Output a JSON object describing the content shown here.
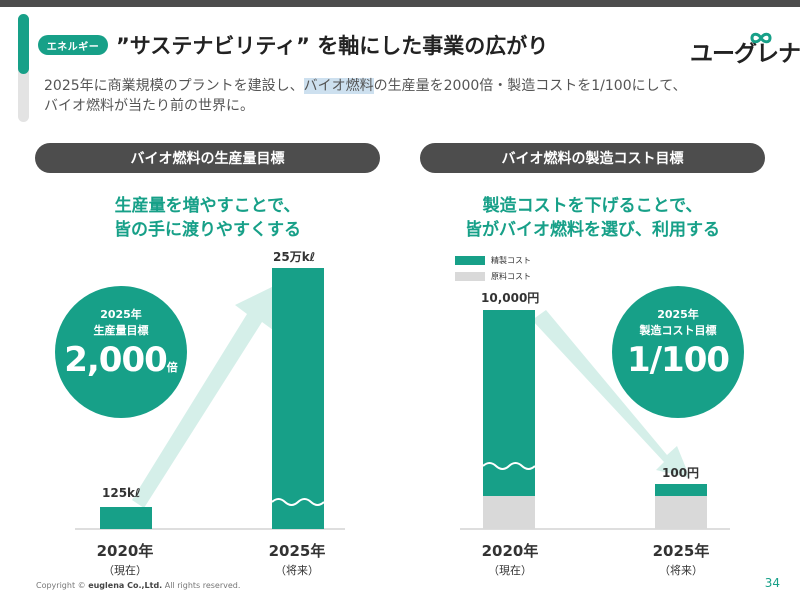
{
  "header": {
    "tag": "エネルギー",
    "title": "”サステナビリティ” を軸にした事業の広がり",
    "logo_text": "ユーグレナ"
  },
  "subtitle": {
    "part1": "2025年に商業規模のプラントを建設し、",
    "highlight": "バイオ燃料",
    "part2": "の生産量を2000倍・製造コストを1/100にして、",
    "line2": "バイオ燃料が当たり前の世界に。"
  },
  "left_panel": {
    "pill": "バイオ燃料の生産量目標",
    "headline_1": "生産量を増やすことで、",
    "headline_2": "皆の手に渡りやすくする",
    "badge": {
      "year": "2025年",
      "label": "生産量目標",
      "value": "2,000",
      "unit": "倍"
    }
  },
  "right_panel": {
    "pill": "バイオ燃料の製造コスト目標",
    "headline_1": "製造コストを下げることで、",
    "headline_2": "皆がバイオ燃料を選び、利用する",
    "badge": {
      "year": "2025年",
      "label": "製造コスト目標",
      "value": "1/100"
    },
    "legend": [
      {
        "name": "精製コスト",
        "color": "#17a088"
      },
      {
        "name": "原料コスト",
        "color": "#d9d9d9"
      }
    ]
  },
  "chart_data": [
    {
      "type": "bar",
      "categories": [
        "2020年",
        "2025年"
      ],
      "category_subs": [
        "（現在）",
        "（将来）"
      ],
      "value_labels": [
        "125kℓ",
        "25万kℓ"
      ],
      "values": [
        125,
        250000
      ],
      "axis_broken": true
    },
    {
      "type": "bar",
      "stacked": true,
      "categories": [
        "2020年",
        "2025年"
      ],
      "category_subs": [
        "（現在）",
        "（将来）"
      ],
      "value_labels": [
        "10,000円",
        "100円"
      ],
      "series": [
        {
          "name": "原料コスト",
          "values": [
            35,
            35
          ]
        },
        {
          "name": "精製コスト",
          "values": [
            9965,
            65
          ]
        }
      ],
      "total": [
        10000,
        100
      ],
      "axis_broken": true
    }
  ],
  "footer": {
    "copyright_prefix": "Copyright © ",
    "company": "euglena Co.,Ltd.",
    "rights": " All rights reserved.",
    "page": "34"
  },
  "colors": {
    "accent": "#17a088",
    "arrow": "#d5efe9",
    "dark": "#4d4d4d",
    "raw": "#d9d9d9"
  }
}
